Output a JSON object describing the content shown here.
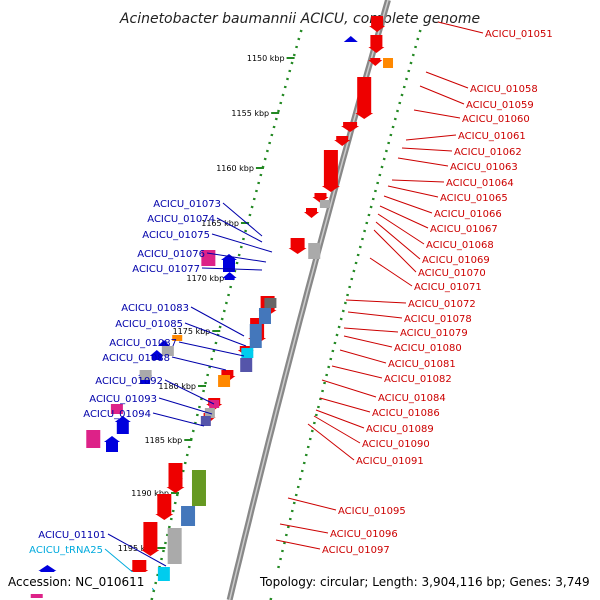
{
  "title": "Acinetobacter baumannii ACICU, complete genome",
  "footer": {
    "accession": "Accession: NC_010611",
    "topology": "Topology: circular; Length: 3,904,116 bp; Genes: 3,749"
  },
  "scale_ticks": [
    "1150 kbp",
    "1155 kbp",
    "1160 kbp",
    "1165 kbp",
    "1170 kbp",
    "1175 kbp",
    "1180 kbp",
    "1185 kbp",
    "1190 kbp",
    "1195 kbp"
  ],
  "labels_right": [
    "ACICU_01051",
    "ACICU_01058",
    "ACICU_01059",
    "ACICU_01060",
    "ACICU_01061",
    "ACICU_01062",
    "ACICU_01063",
    "ACICU_01064",
    "ACICU_01065",
    "ACICU_01066",
    "ACICU_01067",
    "ACICU_01068",
    "ACICU_01069",
    "ACICU_01070",
    "ACICU_01071",
    "ACICU_01072",
    "ACICU_01078",
    "ACICU_01079",
    "ACICU_01080",
    "ACICU_01081",
    "ACICU_01082",
    "ACICU_01084",
    "ACICU_01086",
    "ACICU_01089",
    "ACICU_01090",
    "ACICU_01091",
    "ACICU_01095",
    "ACICU_01096",
    "ACICU_01097"
  ],
  "labels_left": [
    "ACICU_01073",
    "ACICU_01074",
    "ACICU_01075",
    "ACICU_01076",
    "ACICU_01077",
    "ACICU_01083",
    "ACICU_01085",
    "ACICU_01087",
    "ACICU_01088",
    "ACICU_01092",
    "ACICU_01093",
    "ACICU_01094",
    "ACICU_01101",
    "ACICU_tRNA25"
  ],
  "colors": {
    "backbone": "#888888",
    "forward_gene": "#0000dd",
    "reverse_gene": "#ee0000",
    "label_right": "#cc0000",
    "label_left": "#0000aa",
    "label_trna": "#00aadd",
    "scale_ticks": "#228822",
    "magenta": "#dd2288",
    "orange": "#ff8800",
    "olive": "#669922",
    "steel_blue": "#4477bb",
    "cyan": "#00ccee",
    "gray": "#aaaaaa",
    "purple": "#5555aa"
  }
}
